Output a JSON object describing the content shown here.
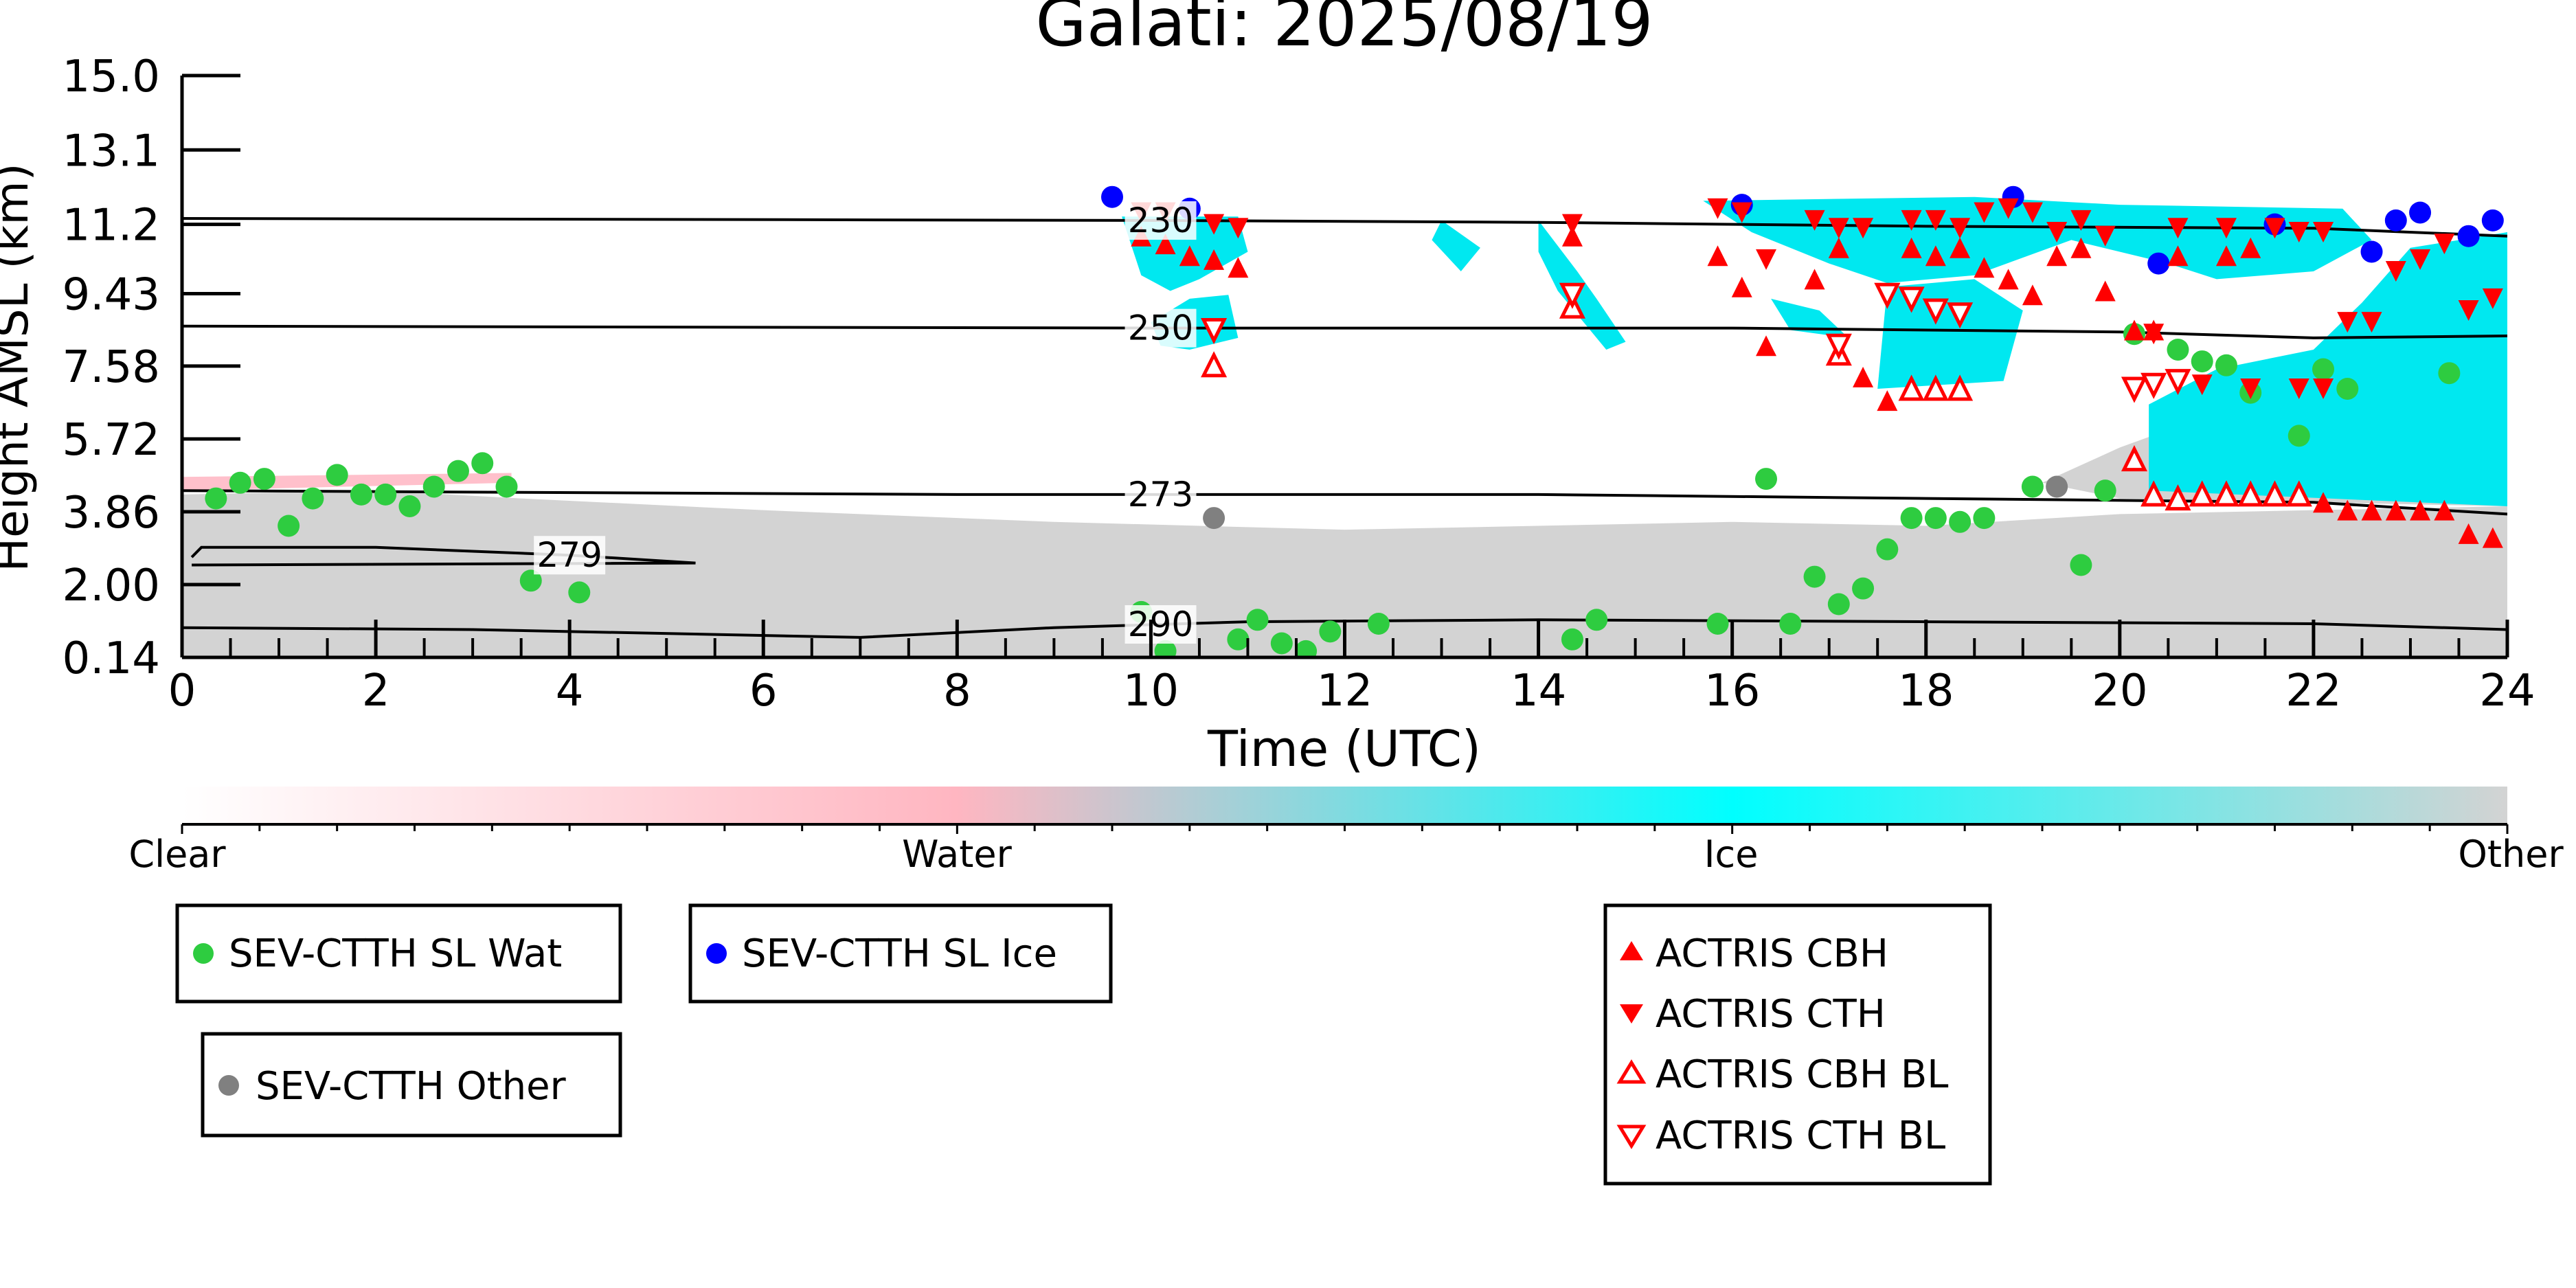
{
  "chart_data": {
    "type": "scatter",
    "title": "Galati: 2025/08/19",
    "xlabel": "Time (UTC)",
    "ylabel": "Height AMSL (km)",
    "xlim": [
      0,
      24
    ],
    "ylim": [
      0.14,
      15.0
    ],
    "xticks": [
      "0",
      "2",
      "4",
      "6",
      "8",
      "10",
      "12",
      "14",
      "16",
      "18",
      "20",
      "22",
      "24"
    ],
    "yticks": [
      "0.14",
      "2.00",
      "3.86",
      "5.72",
      "7.58",
      "9.43",
      "11.2",
      "13.1",
      "15.0"
    ],
    "colorbar": {
      "labels": [
        "Clear",
        "Water",
        "Ice",
        "Other"
      ],
      "colors": [
        "#ffffff",
        "#ffb6c1",
        "#00ffff",
        "#d3d3d3"
      ]
    },
    "contours": [
      {
        "label": "230",
        "points": [
          [
            0,
            11.35
          ],
          [
            10,
            11.3
          ],
          [
            14,
            11.25
          ],
          [
            18,
            11.15
          ],
          [
            22,
            11.1
          ],
          [
            24,
            10.9
          ]
        ]
      },
      {
        "label": "250",
        "points": [
          [
            0,
            8.6
          ],
          [
            10,
            8.55
          ],
          [
            16,
            8.55
          ],
          [
            20,
            8.45
          ],
          [
            22,
            8.3
          ],
          [
            24,
            8.35
          ]
        ]
      },
      {
        "label": "273",
        "points": [
          [
            0,
            4.4
          ],
          [
            8,
            4.3
          ],
          [
            14,
            4.3
          ],
          [
            18,
            4.2
          ],
          [
            20,
            4.15
          ],
          [
            22,
            4.1
          ],
          [
            24,
            3.8
          ]
        ]
      },
      {
        "label": "279",
        "points": [
          [
            0.1,
            2.7
          ],
          [
            0.2,
            2.95
          ],
          [
            2,
            2.95
          ],
          [
            4,
            2.75
          ],
          [
            5.3,
            2.55
          ],
          [
            0.1,
            2.5
          ]
        ]
      },
      {
        "label": "290",
        "points": [
          [
            0,
            0.9
          ],
          [
            3,
            0.85
          ],
          [
            7,
            0.65
          ],
          [
            9,
            0.9
          ],
          [
            11,
            1.05
          ],
          [
            14,
            1.1
          ],
          [
            18,
            1.05
          ],
          [
            22,
            1.0
          ],
          [
            24,
            0.85
          ]
        ]
      }
    ],
    "series": [
      {
        "name": "SEV-CTTH SL Wat",
        "color": "#2ecc40",
        "marker": "circle",
        "points": [
          [
            0.35,
            4.2
          ],
          [
            0.6,
            4.6
          ],
          [
            0.85,
            4.7
          ],
          [
            1.1,
            3.5
          ],
          [
            1.35,
            4.2
          ],
          [
            1.6,
            4.8
          ],
          [
            1.85,
            4.3
          ],
          [
            2.1,
            4.3
          ],
          [
            2.35,
            4.0
          ],
          [
            2.6,
            4.5
          ],
          [
            2.85,
            4.9
          ],
          [
            3.1,
            5.1
          ],
          [
            3.35,
            4.5
          ],
          [
            3.6,
            2.1
          ],
          [
            4.1,
            1.8
          ],
          [
            9.9,
            1.3
          ],
          [
            10.15,
            0.3
          ],
          [
            10.9,
            0.6
          ],
          [
            11.1,
            1.1
          ],
          [
            11.35,
            0.5
          ],
          [
            11.6,
            0.3
          ],
          [
            11.85,
            0.8
          ],
          [
            12.35,
            1.0
          ],
          [
            14.35,
            0.6
          ],
          [
            14.6,
            1.1
          ],
          [
            15.85,
            1.0
          ],
          [
            16.35,
            4.7
          ],
          [
            16.6,
            1.0
          ],
          [
            16.85,
            2.2
          ],
          [
            17.1,
            1.5
          ],
          [
            17.35,
            1.9
          ],
          [
            17.6,
            2.9
          ],
          [
            17.85,
            3.7
          ],
          [
            18.1,
            3.7
          ],
          [
            18.35,
            3.6
          ],
          [
            18.6,
            3.7
          ],
          [
            19.1,
            4.5
          ],
          [
            19.6,
            2.5
          ],
          [
            19.85,
            4.4
          ],
          [
            20.15,
            8.4
          ],
          [
            20.6,
            8.0
          ],
          [
            20.85,
            7.7
          ],
          [
            21.1,
            7.6
          ],
          [
            21.35,
            6.9
          ],
          [
            21.85,
            5.8
          ],
          [
            22.1,
            7.5
          ],
          [
            22.35,
            7.0
          ],
          [
            23.4,
            7.4
          ]
        ]
      },
      {
        "name": "SEV-CTTH SL Ice",
        "color": "#0000ff",
        "marker": "circle",
        "points": [
          [
            9.6,
            11.9
          ],
          [
            10.4,
            11.6
          ],
          [
            16.1,
            11.7
          ],
          [
            18.9,
            11.9
          ],
          [
            20.4,
            10.2
          ],
          [
            21.6,
            11.2
          ],
          [
            22.6,
            10.5
          ],
          [
            22.85,
            11.3
          ],
          [
            23.1,
            11.5
          ],
          [
            23.6,
            10.9
          ],
          [
            23.85,
            11.3
          ]
        ]
      },
      {
        "name": "SEV-CTTH Other",
        "color": "#808080",
        "marker": "circle",
        "points": [
          [
            10.65,
            3.7
          ],
          [
            19.35,
            4.5
          ]
        ]
      },
      {
        "name": "ACTRIS CBH",
        "color": "#ff0000",
        "marker": "triangle-up",
        "points": [
          [
            9.9,
            10.9
          ],
          [
            10.15,
            10.7
          ],
          [
            10.4,
            10.4
          ],
          [
            10.65,
            10.3
          ],
          [
            10.9,
            10.1
          ],
          [
            14.35,
            10.9
          ],
          [
            15.85,
            10.4
          ],
          [
            16.1,
            9.6
          ],
          [
            16.35,
            8.1
          ],
          [
            16.85,
            9.8
          ],
          [
            17.1,
            10.6
          ],
          [
            17.35,
            7.3
          ],
          [
            17.6,
            6.7
          ],
          [
            17.85,
            10.6
          ],
          [
            18.1,
            10.4
          ],
          [
            18.35,
            10.6
          ],
          [
            18.6,
            10.1
          ],
          [
            18.85,
            9.8
          ],
          [
            19.1,
            9.4
          ],
          [
            19.35,
            10.4
          ],
          [
            19.6,
            10.6
          ],
          [
            19.85,
            9.5
          ],
          [
            20.15,
            8.5
          ],
          [
            20.35,
            8.5
          ],
          [
            20.6,
            10.4
          ],
          [
            21.1,
            10.4
          ],
          [
            21.35,
            10.6
          ],
          [
            22.1,
            4.1
          ],
          [
            22.35,
            3.9
          ],
          [
            22.6,
            3.9
          ],
          [
            22.85,
            3.9
          ],
          [
            23.1,
            3.9
          ],
          [
            23.35,
            3.9
          ],
          [
            23.6,
            3.3
          ],
          [
            23.85,
            3.2
          ]
        ]
      },
      {
        "name": "ACTRIS CTH",
        "color": "#ff0000",
        "marker": "triangle-down",
        "points": [
          [
            9.9,
            11.5
          ],
          [
            10.15,
            11.5
          ],
          [
            10.65,
            11.2
          ],
          [
            10.9,
            11.1
          ],
          [
            14.35,
            11.2
          ],
          [
            15.85,
            11.6
          ],
          [
            16.1,
            11.5
          ],
          [
            16.35,
            10.3
          ],
          [
            16.85,
            11.3
          ],
          [
            17.1,
            11.1
          ],
          [
            17.35,
            11.1
          ],
          [
            17.85,
            11.3
          ],
          [
            18.1,
            11.3
          ],
          [
            18.35,
            11.1
          ],
          [
            18.6,
            11.5
          ],
          [
            18.85,
            11.6
          ],
          [
            19.1,
            11.5
          ],
          [
            19.35,
            11.0
          ],
          [
            19.6,
            11.3
          ],
          [
            19.85,
            10.9
          ],
          [
            20.35,
            8.4
          ],
          [
            20.6,
            11.1
          ],
          [
            20.85,
            7.1
          ],
          [
            21.1,
            11.1
          ],
          [
            21.35,
            7.0
          ],
          [
            21.6,
            11.1
          ],
          [
            21.85,
            11.0
          ],
          [
            22.1,
            11.0
          ],
          [
            22.35,
            8.7
          ],
          [
            22.6,
            8.7
          ],
          [
            22.85,
            10.0
          ],
          [
            23.1,
            10.3
          ],
          [
            23.35,
            10.7
          ],
          [
            23.6,
            9.0
          ],
          [
            23.85,
            9.3
          ],
          [
            21.85,
            7.0
          ],
          [
            22.1,
            7.0
          ]
        ]
      },
      {
        "name": "ACTRIS CBH BL",
        "color": "#ff0000",
        "marker": "triangle-up-open",
        "points": [
          [
            10.65,
            7.6
          ],
          [
            14.35,
            9.1
          ],
          [
            17.1,
            7.9
          ],
          [
            17.85,
            7.0
          ],
          [
            18.1,
            7.0
          ],
          [
            18.35,
            7.0
          ],
          [
            20.15,
            5.2
          ],
          [
            20.35,
            4.3
          ],
          [
            20.6,
            4.2
          ],
          [
            20.85,
            4.3
          ],
          [
            21.1,
            4.3
          ],
          [
            21.35,
            4.3
          ],
          [
            21.6,
            4.3
          ],
          [
            21.85,
            4.3
          ]
        ]
      },
      {
        "name": "ACTRIS CTH BL",
        "color": "#ff0000",
        "marker": "triangle-down-open",
        "points": [
          [
            10.65,
            8.5
          ],
          [
            14.35,
            9.4
          ],
          [
            17.1,
            8.1
          ],
          [
            17.6,
            9.4
          ],
          [
            17.85,
            9.3
          ],
          [
            18.1,
            9.0
          ],
          [
            18.35,
            8.9
          ],
          [
            20.15,
            7.0
          ],
          [
            20.35,
            7.1
          ],
          [
            20.6,
            7.2
          ]
        ]
      }
    ],
    "legends": [
      {
        "entries": [
          "SEV-CTTH SL Wat"
        ]
      },
      {
        "entries": [
          "SEV-CTTH SL Ice"
        ]
      },
      {
        "entries": [
          "SEV-CTTH Other"
        ]
      },
      {
        "entries": [
          "ACTRIS CBH",
          "ACTRIS CTH",
          "ACTRIS CBH BL",
          "ACTRIS CTH BL"
        ]
      }
    ]
  }
}
